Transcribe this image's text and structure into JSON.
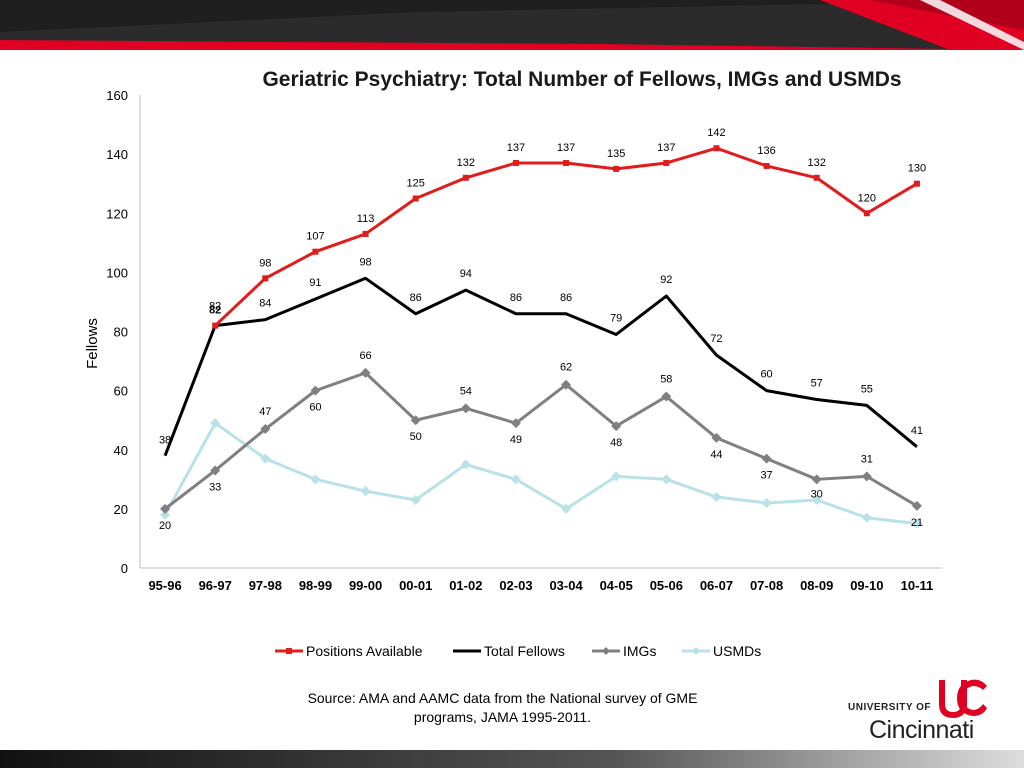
{
  "colors": {
    "positions": "#e21b1b",
    "total": "#000000",
    "imgs": "#808080",
    "usmds": "#b9e1e8",
    "brand_red": "#e00122",
    "banner_dark": "#1f1f1f"
  },
  "source": {
    "line1": "Source: AMA and AAMC data from the National survey of GME",
    "line2": "programs, JAMA 1995-2011."
  },
  "logo": {
    "top": "UNIVERSITY OF",
    "bottom": "Cincinnati"
  },
  "chart_data": {
    "type": "line",
    "title": "Geriatric Psychiatry: Total Number of Fellows, IMGs and USMDs",
    "ylabel": "Fellows",
    "xlabel": "",
    "ylim": [
      0,
      160
    ],
    "yticks": [
      0,
      20,
      40,
      60,
      80,
      100,
      120,
      140,
      160
    ],
    "grid": false,
    "legend_position": "bottom",
    "categories": [
      "95-96",
      "96-97",
      "97-98",
      "98-99",
      "99-00",
      "00-01",
      "01-02",
      "02-03",
      "03-04",
      "04-05",
      "05-06",
      "06-07",
      "07-08",
      "08-09",
      "09-10",
      "10-11"
    ],
    "series": [
      {
        "name": "Positions Available",
        "color": "#e21b1b",
        "marker": "square",
        "values": [
          null,
          82,
          98,
          107,
          113,
          125,
          132,
          137,
          137,
          135,
          137,
          142,
          136,
          132,
          120,
          130
        ],
        "labels": [
          "",
          "82",
          "98",
          "107",
          "113",
          "125",
          "132",
          "137",
          "137",
          "135",
          "137",
          "142",
          "136",
          "132",
          "120",
          "130"
        ]
      },
      {
        "name": "Total Fellows",
        "color": "#000000",
        "marker": "none",
        "values": [
          38,
          82,
          84,
          91,
          98,
          86,
          94,
          86,
          86,
          79,
          92,
          72,
          60,
          57,
          55,
          41
        ],
        "labels": [
          "38",
          "82",
          "84",
          "91",
          "98",
          "86",
          "94",
          "86",
          "86",
          "79",
          "92",
          "72",
          "60",
          "57",
          "55",
          "41"
        ]
      },
      {
        "name": "IMGs",
        "color": "#808080",
        "marker": "diamond",
        "values": [
          20,
          33,
          47,
          60,
          66,
          50,
          54,
          49,
          62,
          48,
          58,
          44,
          37,
          30,
          31,
          21
        ],
        "labels": [
          "20",
          "33",
          "47",
          "60",
          "66",
          "50",
          "54",
          "49",
          "62",
          "48",
          "58",
          "44",
          "37",
          "30",
          "31",
          "21"
        ]
      },
      {
        "name": "USMDs",
        "color": "#b9e1e8",
        "marker": "diamond",
        "values": [
          18,
          49,
          37,
          30,
          26,
          23,
          35,
          30,
          20,
          31,
          30,
          24,
          22,
          23,
          17,
          15
        ],
        "labels": [
          "",
          "",
          "",
          "",
          "",
          "",
          "",
          "",
          "",
          "",
          "",
          "",
          "",
          "",
          "",
          ""
        ]
      }
    ]
  }
}
